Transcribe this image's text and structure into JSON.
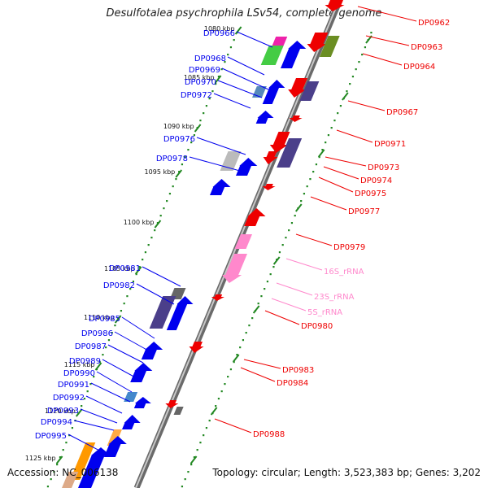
{
  "title": "Desulfotalea psychrophila LSv54, complete genome",
  "accession_text": "Accession: NC_006138",
  "summary_text": "Topology: circular; Length: 3,523,383 bp; Genes: 3,202",
  "colors": {
    "forward_gene": "#0000ee",
    "reverse_gene": "#ee0000",
    "rrna": "#ff88cc",
    "tick": "#228822",
    "backbone": "#888888"
  },
  "position_ticks": [
    "1080 kbp",
    "1085 kbp",
    "1090 kbp",
    "1095 kbp",
    "1100 kbp",
    "1105 kbp",
    "1110 kbp",
    "1115 kbp",
    "1120 kbp",
    "1125 kbp"
  ],
  "forward_labels": [
    "DP0966",
    "DP0968",
    "DP0969",
    "DP0970",
    "DP0972",
    "DP0976",
    "DP0978",
    "DP0981",
    "DP0982",
    "DP0985",
    "DP0986",
    "DP0987",
    "DP0989",
    "DP0990",
    "DP0991",
    "DP0992",
    "DP0993",
    "DP0994",
    "DP0995"
  ],
  "reverse_labels": [
    "DP0962",
    "DP0963",
    "DP0964",
    "DP0967",
    "DP0971",
    "DP0973",
    "DP0974",
    "DP0975",
    "DP0977",
    "DP0979",
    "16S_rRNA",
    "23S_rRNA",
    "5S_rRNA",
    "DP0980",
    "DP0983",
    "DP0984",
    "DP0988"
  ]
}
